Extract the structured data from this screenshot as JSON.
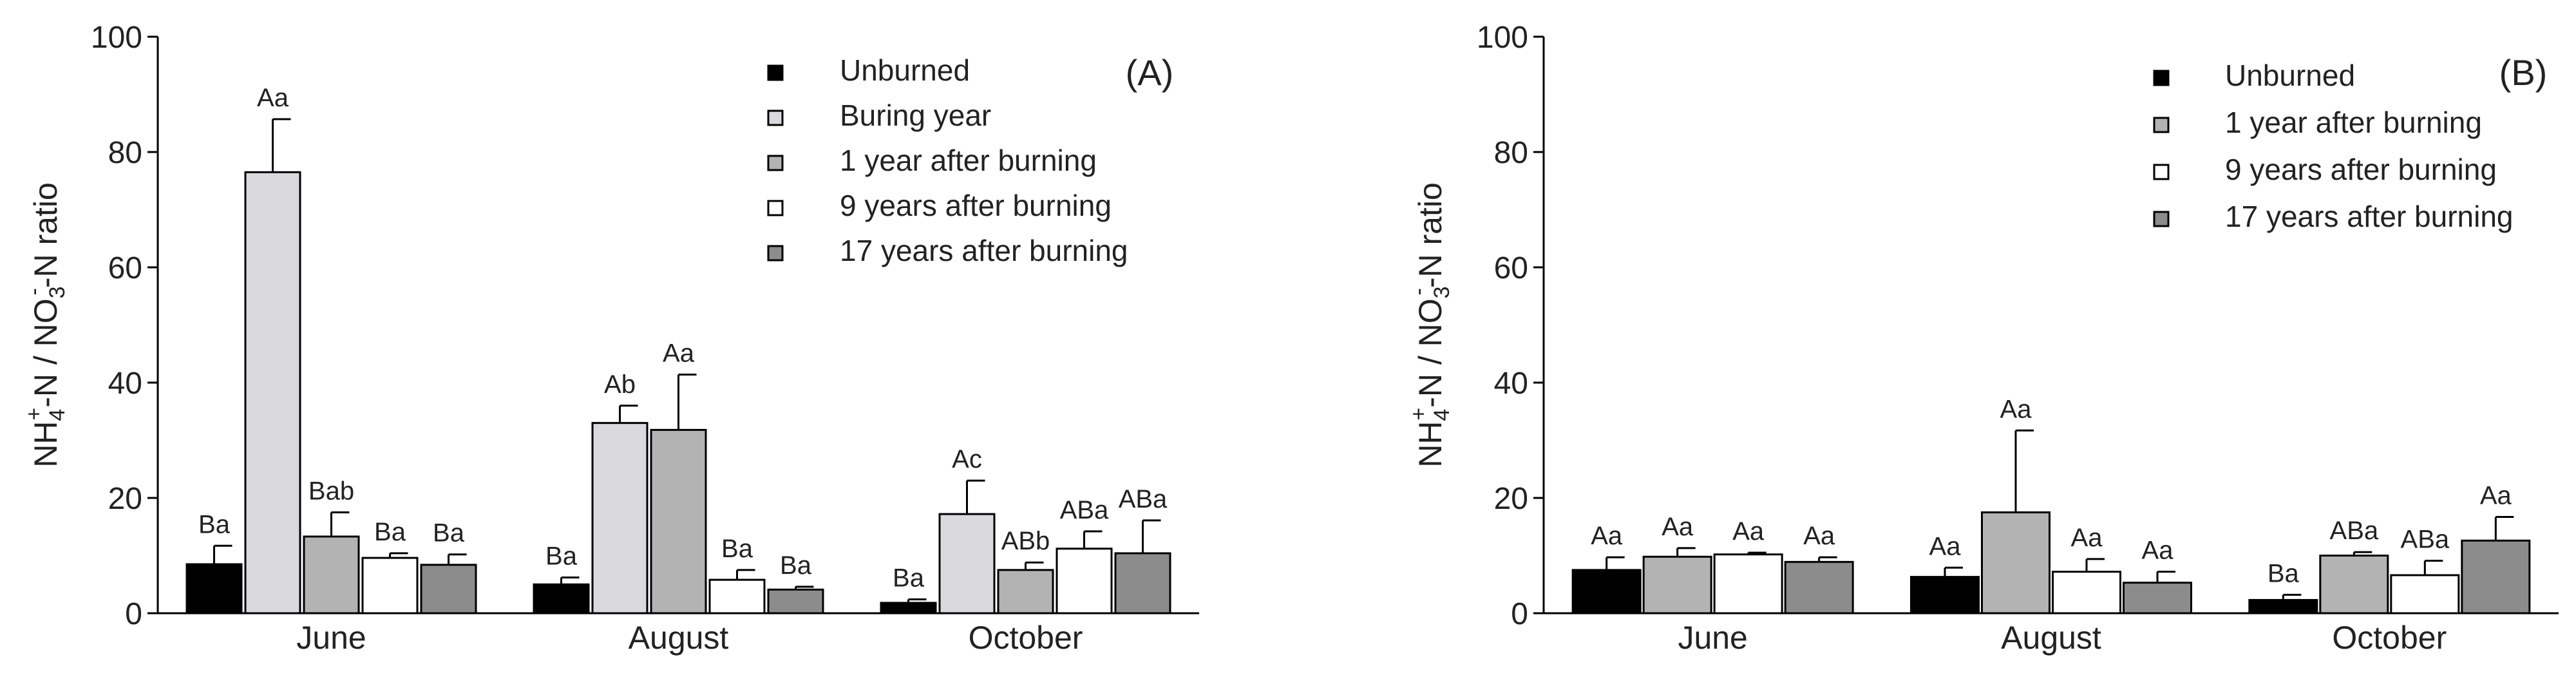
{
  "chart_data": [
    {
      "type": "bar",
      "panel_label": "(A)",
      "ylabel": "NH4+-N / NO3--N ratio",
      "ylabel_parts": {
        "a": "NH",
        "a_sub": "4",
        "a_sup": "+",
        "b": "-N / NO",
        "b_sub": "3",
        "b_sup": "-",
        "c": "-N ratio"
      },
      "ylim": [
        0,
        100
      ],
      "yticks": [
        0,
        20,
        40,
        60,
        80,
        100
      ],
      "ytick_labels": [
        "0",
        "20",
        "40",
        "60",
        "80",
        "100"
      ],
      "categories": [
        "June",
        "August",
        "October"
      ],
      "legend_position": "top-right",
      "series": [
        {
          "name": "Unburned",
          "color": "#000000",
          "values": [
            8.5,
            5.0,
            1.8
          ],
          "errors": [
            3.2,
            1.2,
            0.6
          ],
          "labels": [
            "Ba",
            "Ba",
            "Ba"
          ]
        },
        {
          "name": "Buring year",
          "color": "#d9d9de",
          "values": [
            76.5,
            33.0,
            17.2
          ],
          "errors": [
            9.2,
            3.0,
            5.8
          ],
          "labels": [
            "Aa",
            "Ab",
            "Ac"
          ]
        },
        {
          "name": "1 year after burning",
          "color": "#b3b3b3",
          "values": [
            13.3,
            31.8,
            7.5
          ],
          "errors": [
            4.2,
            9.6,
            1.3
          ],
          "labels": [
            "Bab",
            "Aa",
            "ABb"
          ]
        },
        {
          "name": "9 years after burning",
          "color": "#ffffff",
          "values": [
            9.6,
            5.8,
            11.2
          ],
          "errors": [
            0.8,
            1.7,
            3.0
          ],
          "labels": [
            "Ba",
            "Ba",
            "ABa"
          ]
        },
        {
          "name": "17 years after burning",
          "color": "#8c8c8c",
          "values": [
            8.4,
            4.1,
            10.4
          ],
          "errors": [
            1.8,
            0.5,
            5.7
          ],
          "labels": [
            "Ba",
            "Ba",
            "ABa"
          ]
        }
      ]
    },
    {
      "type": "bar",
      "panel_label": "(B)",
      "ylabel": "NH4+-N / NO3--N ratio",
      "ylabel_parts": {
        "a": "NH",
        "a_sub": "4",
        "a_sup": "+",
        "b": "-N / NO",
        "b_sub": "3",
        "b_sup": "-",
        "c": "-N ratio"
      },
      "ylim": [
        0,
        100
      ],
      "yticks": [
        0,
        20,
        40,
        60,
        80,
        100
      ],
      "ytick_labels": [
        "0",
        "20",
        "40",
        "60",
        "80",
        "100"
      ],
      "categories": [
        "June",
        "August",
        "October"
      ],
      "legend_position": "top-right",
      "series": [
        {
          "name": "Unburned",
          "color": "#000000",
          "values": [
            7.5,
            6.3,
            2.3
          ],
          "errors": [
            2.2,
            1.6,
            0.9
          ],
          "labels": [
            "Aa",
            "Aa",
            "Ba"
          ]
        },
        {
          "name": "1 year after burning",
          "color": "#b3b3b3",
          "values": [
            9.8,
            17.5,
            10.0
          ],
          "errors": [
            1.5,
            14.2,
            0.6
          ],
          "labels": [
            "Aa",
            "Aa",
            "ABa"
          ]
        },
        {
          "name": "9 years after burning",
          "color": "#ffffff",
          "values": [
            10.2,
            7.2,
            6.6
          ],
          "errors": [
            0.3,
            2.2,
            2.5
          ],
          "labels": [
            "Aa",
            "Aa",
            "ABa"
          ]
        },
        {
          "name": "17 years after burning",
          "color": "#8c8c8c",
          "values": [
            8.9,
            5.3,
            12.6
          ],
          "errors": [
            0.8,
            1.9,
            4.1
          ],
          "labels": [
            "Aa",
            "Aa",
            "Aa"
          ]
        }
      ]
    }
  ]
}
